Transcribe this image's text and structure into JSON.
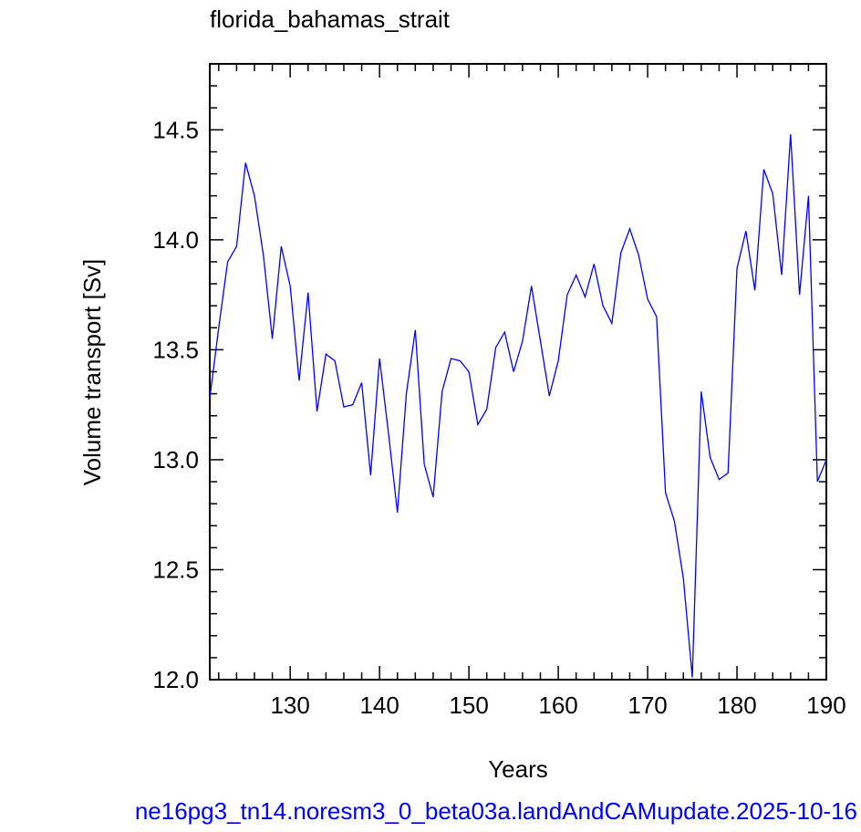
{
  "chart_data": {
    "type": "line",
    "title": "florida_bahamas_strait",
    "xlabel": "Years",
    "ylabel": "Volume transport [Sv]",
    "footer": "ne16pg3_tn14.noresm3_0_beta03a.landAndCAMupdate.2025-10-16",
    "x": [
      121,
      122,
      123,
      124,
      125,
      126,
      127,
      128,
      129,
      130,
      131,
      132,
      133,
      134,
      135,
      136,
      137,
      138,
      139,
      140,
      141,
      142,
      143,
      144,
      145,
      146,
      147,
      148,
      149,
      150,
      151,
      152,
      153,
      154,
      155,
      156,
      157,
      158,
      159,
      160,
      161,
      162,
      163,
      164,
      165,
      166,
      167,
      168,
      169,
      170,
      171,
      172,
      173,
      174,
      175,
      176,
      177,
      178,
      179,
      180,
      181,
      182,
      183,
      184,
      185,
      186,
      187,
      188,
      189,
      190
    ],
    "series": [
      {
        "name": "florida_bahamas_strait",
        "color": "#0000ff",
        "values": [
          13.28,
          13.6,
          13.9,
          13.97,
          14.35,
          14.2,
          13.93,
          13.55,
          13.97,
          13.79,
          13.36,
          13.76,
          13.22,
          13.48,
          13.45,
          13.24,
          13.25,
          13.35,
          12.93,
          13.46,
          13.12,
          12.76,
          13.3,
          13.59,
          12.98,
          12.83,
          13.31,
          13.46,
          13.45,
          13.4,
          13.16,
          13.23,
          13.51,
          13.58,
          13.4,
          13.54,
          13.79,
          13.54,
          13.29,
          13.45,
          13.75,
          13.84,
          13.74,
          13.89,
          13.7,
          13.62,
          13.94,
          14.05,
          13.93,
          13.73,
          13.65,
          12.85,
          12.72,
          12.46,
          12.01,
          13.31,
          13.01,
          12.91,
          12.94,
          13.87,
          14.04,
          13.77,
          14.32,
          14.21,
          13.84,
          14.48,
          13.75,
          14.2,
          12.9,
          13.0
        ]
      }
    ],
    "xlim": [
      121,
      190
    ],
    "ylim": [
      12,
      14.8
    ],
    "xticks": [
      130,
      140,
      150,
      160,
      170,
      180,
      190
    ],
    "yticks": [
      {
        "value": 12,
        "label": "12.0"
      },
      12.5,
      {
        "value": 13,
        "label": "13.0"
      },
      13.5,
      {
        "value": 14,
        "label": "14.0"
      },
      14.5
    ],
    "xminorticks": [
      122,
      124,
      126,
      128,
      132,
      134,
      136,
      138,
      142,
      144,
      146,
      148,
      152,
      154,
      156,
      158,
      162,
      164,
      166,
      168,
      172,
      174,
      176,
      178,
      182,
      184,
      186,
      188
    ],
    "yminorticks": [
      12.1,
      12.2,
      12.3,
      12.4,
      12.6,
      12.7,
      12.8,
      12.9,
      13.1,
      13.2,
      13.3,
      13.4,
      13.6,
      13.7,
      13.8,
      13.9,
      14.1,
      14.2,
      14.3,
      14.4,
      14.6,
      14.7,
      14.8
    ]
  }
}
